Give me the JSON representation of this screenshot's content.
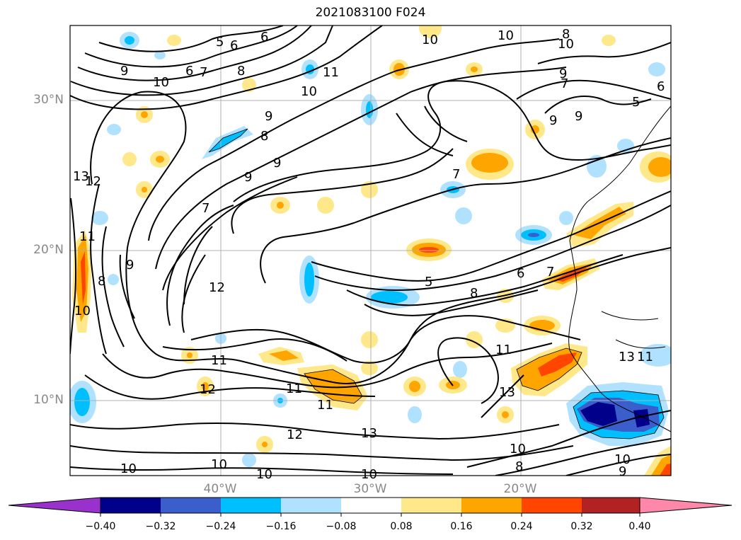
{
  "title": "2021083100 F024",
  "lat_labels": [
    "30°N",
    "20°N",
    "10°N"
  ],
  "lon_labels": [
    "40°W",
    "30°W",
    "20°W"
  ],
  "colorbar": {
    "ticks": [
      "−0.40",
      "−0.32",
      "−0.24",
      "−0.16",
      "−0.08",
      "0.08",
      "0.16",
      "0.24",
      "0.32",
      "0.40"
    ],
    "colors": [
      "#9932cc",
      "#00008b",
      "#3a5fcd",
      "#00bfff",
      "#b0e2ff",
      "#ffffff",
      "#ffe88a",
      "#ffa500",
      "#ff4500",
      "#b22222",
      "#ff88aa"
    ]
  },
  "contour_labels": [
    "5",
    "6",
    "7",
    "8",
    "9",
    "10",
    "11",
    "12",
    "13"
  ],
  "map": {
    "projection": "cylindrical",
    "lon_range": [
      -50,
      -10
    ],
    "lat_range": [
      5,
      35
    ],
    "grid": true
  }
}
